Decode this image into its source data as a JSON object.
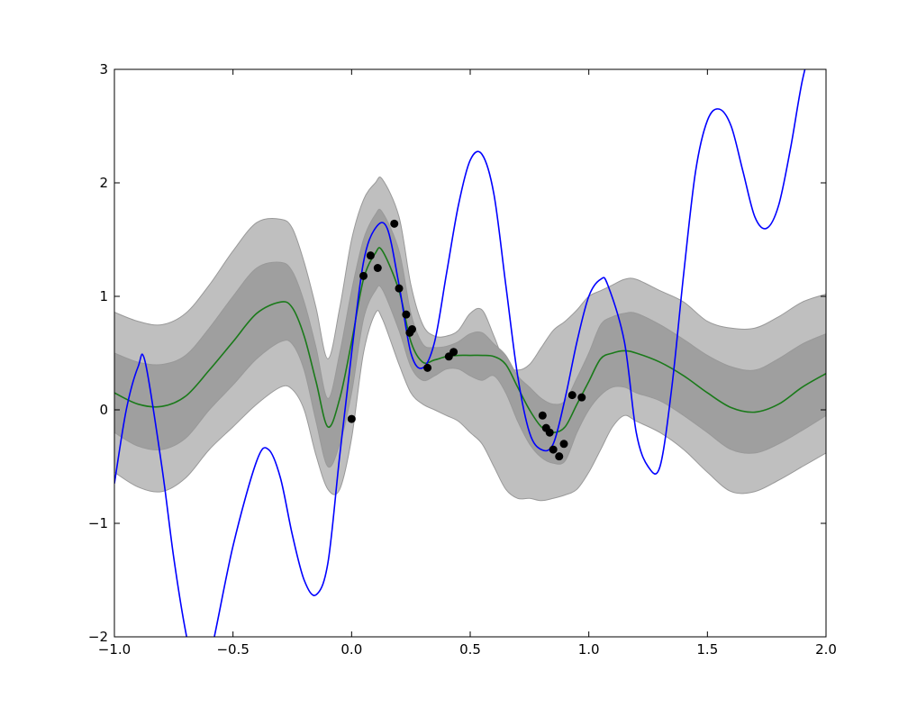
{
  "chart_data": {
    "type": "line",
    "title": "",
    "xlabel": "",
    "ylabel": "",
    "xlim": [
      -1.0,
      2.0
    ],
    "ylim": [
      -2,
      3
    ],
    "grid": false,
    "legend": "none",
    "x_ticks": [
      "−1.0",
      "−0.5",
      "0.0",
      "0.5",
      "1.0",
      "1.5",
      "2.0"
    ],
    "x_tick_values": [
      -1.0,
      -0.5,
      0.0,
      0.5,
      1.0,
      1.5,
      2.0
    ],
    "y_ticks": [
      "−2",
      "−1",
      "0",
      "1",
      "2",
      "3"
    ],
    "y_tick_values": [
      -2,
      -1,
      0,
      1,
      2,
      3
    ],
    "colors": {
      "true_function": "#0000ff",
      "posterior_mean": "#1a7a1a",
      "band_outer": "#bfbfbf",
      "band_inner": "#9f9f9f",
      "band_edge": "#999999",
      "observations": "#000000"
    },
    "series": [
      {
        "role": "true-function",
        "x": [
          -1.0,
          -0.95,
          -0.9,
          -0.87,
          -0.8,
          -0.75,
          -0.7,
          -0.65,
          -0.6,
          -0.5,
          -0.4,
          -0.35,
          -0.3,
          -0.25,
          -0.2,
          -0.15,
          -0.1,
          -0.05,
          0.0,
          0.05,
          0.1,
          0.15,
          0.2,
          0.25,
          0.3,
          0.35,
          0.4,
          0.45,
          0.5,
          0.55,
          0.6,
          0.65,
          0.7,
          0.75,
          0.8,
          0.85,
          0.9,
          0.95,
          1.0,
          1.05,
          1.08,
          1.15,
          1.2,
          1.25,
          1.3,
          1.35,
          1.4,
          1.45,
          1.5,
          1.55,
          1.6,
          1.65,
          1.7,
          1.75,
          1.8,
          1.85,
          1.9,
          1.95
        ],
        "y": [
          -0.65,
          0.0,
          0.38,
          0.42,
          -0.5,
          -1.3,
          -1.95,
          -2.4,
          -2.2,
          -1.2,
          -0.45,
          -0.35,
          -0.6,
          -1.1,
          -1.5,
          -1.63,
          -1.35,
          -0.4,
          0.5,
          1.3,
          1.6,
          1.6,
          1.1,
          0.5,
          0.37,
          0.6,
          1.2,
          1.8,
          2.2,
          2.25,
          1.9,
          1.1,
          0.3,
          -0.2,
          -0.35,
          -0.3,
          0.1,
          0.6,
          1.0,
          1.15,
          1.1,
          0.6,
          -0.2,
          -0.5,
          -0.5,
          0.2,
          1.2,
          2.1,
          2.55,
          2.65,
          2.5,
          2.1,
          1.7,
          1.6,
          1.8,
          2.3,
          2.9,
          3.3
        ]
      },
      {
        "role": "posterior-mean",
        "x": [
          -1.0,
          -0.9,
          -0.8,
          -0.7,
          -0.6,
          -0.5,
          -0.4,
          -0.3,
          -0.25,
          -0.2,
          -0.15,
          -0.1,
          -0.05,
          0.0,
          0.05,
          0.1,
          0.13,
          0.2,
          0.25,
          0.3,
          0.35,
          0.4,
          0.45,
          0.5,
          0.55,
          0.6,
          0.65,
          0.7,
          0.75,
          0.8,
          0.85,
          0.9,
          0.95,
          1.0,
          1.05,
          1.1,
          1.15,
          1.2,
          1.3,
          1.4,
          1.5,
          1.6,
          1.7,
          1.8,
          1.9,
          2.0
        ],
        "y": [
          0.15,
          0.05,
          0.03,
          0.12,
          0.35,
          0.6,
          0.85,
          0.95,
          0.9,
          0.65,
          0.25,
          -0.15,
          0.1,
          0.6,
          1.15,
          1.38,
          1.4,
          1.05,
          0.6,
          0.42,
          0.44,
          0.47,
          0.48,
          0.48,
          0.48,
          0.47,
          0.4,
          0.2,
          0.0,
          -0.15,
          -0.2,
          -0.15,
          0.05,
          0.25,
          0.45,
          0.5,
          0.52,
          0.5,
          0.42,
          0.3,
          0.15,
          0.02,
          -0.02,
          0.05,
          0.2,
          0.32
        ]
      },
      {
        "role": "band-outer",
        "x": [
          -1.0,
          -0.9,
          -0.8,
          -0.7,
          -0.6,
          -0.5,
          -0.4,
          -0.3,
          -0.25,
          -0.2,
          -0.15,
          -0.1,
          -0.05,
          0.0,
          0.05,
          0.1,
          0.13,
          0.2,
          0.25,
          0.3,
          0.35,
          0.4,
          0.45,
          0.5,
          0.55,
          0.6,
          0.65,
          0.7,
          0.75,
          0.8,
          0.85,
          0.9,
          0.95,
          1.0,
          1.05,
          1.1,
          1.15,
          1.2,
          1.3,
          1.4,
          1.5,
          1.6,
          1.7,
          1.8,
          1.9,
          2.0
        ],
        "upper": [
          0.86,
          0.78,
          0.75,
          0.85,
          1.1,
          1.4,
          1.65,
          1.68,
          1.6,
          1.3,
          0.9,
          0.45,
          0.9,
          1.5,
          1.85,
          2.0,
          2.03,
          1.7,
          1.1,
          0.75,
          0.65,
          0.65,
          0.7,
          0.85,
          0.88,
          0.65,
          0.4,
          0.35,
          0.4,
          0.55,
          0.7,
          0.78,
          0.88,
          1.0,
          1.05,
          1.1,
          1.15,
          1.15,
          1.05,
          0.95,
          0.78,
          0.72,
          0.72,
          0.82,
          0.95,
          1.02
        ],
        "lower": [
          -0.55,
          -0.68,
          -0.72,
          -0.6,
          -0.35,
          -0.15,
          0.05,
          0.2,
          0.18,
          0.0,
          -0.4,
          -0.7,
          -0.7,
          -0.25,
          0.5,
          0.85,
          0.8,
          0.4,
          0.15,
          0.05,
          0.0,
          -0.05,
          -0.1,
          -0.2,
          -0.3,
          -0.5,
          -0.7,
          -0.78,
          -0.78,
          -0.8,
          -0.78,
          -0.75,
          -0.7,
          -0.55,
          -0.35,
          -0.15,
          -0.05,
          -0.1,
          -0.2,
          -0.35,
          -0.55,
          -0.72,
          -0.72,
          -0.62,
          -0.5,
          -0.38
        ]
      },
      {
        "role": "band-inner",
        "x": [
          -1.0,
          -0.9,
          -0.8,
          -0.7,
          -0.6,
          -0.5,
          -0.4,
          -0.3,
          -0.25,
          -0.2,
          -0.15,
          -0.1,
          -0.05,
          0.0,
          0.05,
          0.1,
          0.13,
          0.2,
          0.25,
          0.3,
          0.35,
          0.4,
          0.45,
          0.5,
          0.55,
          0.6,
          0.65,
          0.7,
          0.75,
          0.8,
          0.85,
          0.9,
          0.95,
          1.0,
          1.05,
          1.1,
          1.15,
          1.2,
          1.3,
          1.4,
          1.5,
          1.6,
          1.7,
          1.8,
          1.9,
          2.0
        ],
        "upper": [
          0.5,
          0.42,
          0.4,
          0.48,
          0.72,
          1.0,
          1.25,
          1.3,
          1.22,
          0.95,
          0.55,
          0.1,
          0.5,
          1.05,
          1.5,
          1.72,
          1.74,
          1.4,
          0.85,
          0.58,
          0.55,
          0.56,
          0.6,
          0.67,
          0.68,
          0.58,
          0.48,
          0.3,
          0.2,
          0.1,
          0.05,
          0.08,
          0.28,
          0.5,
          0.75,
          0.82,
          0.85,
          0.85,
          0.75,
          0.62,
          0.48,
          0.38,
          0.35,
          0.45,
          0.58,
          0.67
        ],
        "lower": [
          -0.2,
          -0.32,
          -0.35,
          -0.25,
          0.0,
          0.22,
          0.45,
          0.6,
          0.58,
          0.35,
          -0.1,
          -0.5,
          -0.3,
          0.15,
          0.8,
          1.05,
          1.06,
          0.7,
          0.38,
          0.26,
          0.3,
          0.36,
          0.36,
          0.3,
          0.26,
          0.3,
          0.15,
          -0.1,
          -0.3,
          -0.42,
          -0.47,
          -0.45,
          -0.2,
          -0.0,
          0.13,
          0.2,
          0.2,
          0.15,
          0.08,
          -0.05,
          -0.2,
          -0.35,
          -0.38,
          -0.3,
          -0.18,
          -0.05
        ]
      },
      {
        "role": "observations",
        "x": [
          0.0,
          0.05,
          0.08,
          0.11,
          0.18,
          0.2,
          0.23,
          0.245,
          0.255,
          0.32,
          0.41,
          0.43,
          0.805,
          0.82,
          0.835,
          0.85,
          0.875,
          0.895,
          0.93,
          0.97
        ],
        "y": [
          -0.08,
          1.18,
          1.36,
          1.25,
          1.64,
          1.07,
          0.84,
          0.68,
          0.71,
          0.37,
          0.47,
          0.51,
          -0.05,
          -0.16,
          -0.2,
          -0.35,
          -0.41,
          -0.3,
          0.13,
          0.11
        ]
      }
    ]
  }
}
